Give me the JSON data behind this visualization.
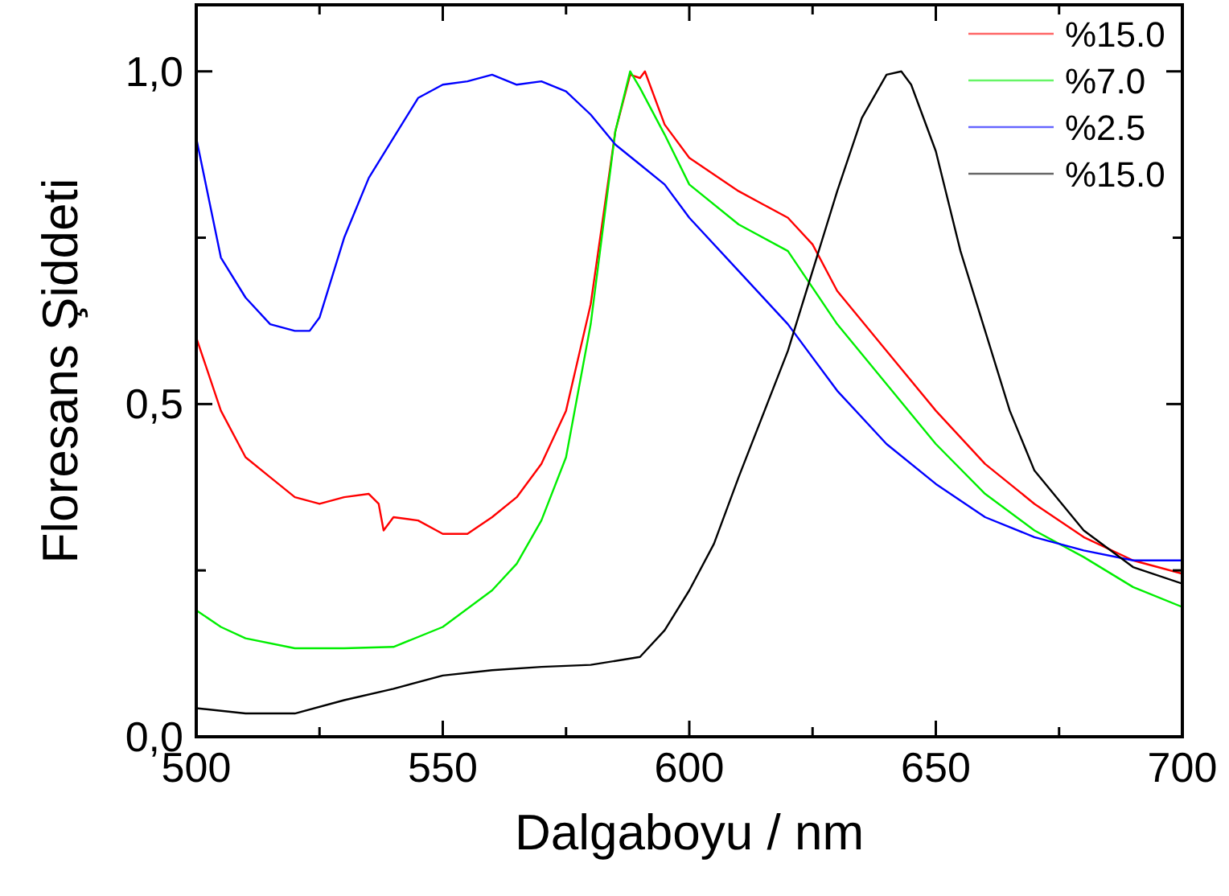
{
  "chart_data": {
    "type": "line",
    "xlabel": "Dalgaboyu / nm",
    "ylabel": "Floresans Şiddeti",
    "xlim": [
      500,
      700
    ],
    "ylim": [
      0,
      1.1
    ],
    "xticks": [
      500,
      {
        "value": 525,
        "label": null
      },
      550,
      {
        "value": 575,
        "label": null
      },
      600,
      {
        "value": 625,
        "label": null
      },
      650,
      {
        "value": 675,
        "label": null
      },
      700
    ],
    "yticks": [
      {
        "value": 0,
        "label": "0,0"
      },
      {
        "value": 0.25,
        "label": null
      },
      {
        "value": 0.5,
        "label": "0,5"
      },
      {
        "value": 0.75,
        "label": null
      },
      {
        "value": 1,
        "label": "1,0"
      }
    ],
    "grid": false,
    "legend": "top right",
    "line_style": "solid",
    "series": [
      {
        "name": "%15.0",
        "color": "#ff0000",
        "x": [
          500,
          505,
          510,
          515,
          520,
          525,
          530,
          535,
          537,
          538,
          540,
          545,
          550,
          555,
          560,
          565,
          570,
          575,
          580,
          585,
          588,
          590,
          591,
          595,
          600,
          610,
          615,
          620,
          625,
          630,
          640,
          650,
          660,
          670,
          680,
          690,
          700
        ],
        "values": [
          0.6,
          0.49,
          0.42,
          0.39,
          0.36,
          0.35,
          0.36,
          0.365,
          0.35,
          0.31,
          0.33,
          0.325,
          0.305,
          0.305,
          0.33,
          0.36,
          0.41,
          0.49,
          0.65,
          0.91,
          0.995,
          0.99,
          1.0,
          0.92,
          0.87,
          0.82,
          0.8,
          0.78,
          0.74,
          0.67,
          0.58,
          0.49,
          0.41,
          0.35,
          0.3,
          0.265,
          0.245
        ]
      },
      {
        "name": "%7.0",
        "color": "#00ee00",
        "x": [
          500,
          505,
          510,
          520,
          530,
          540,
          550,
          560,
          565,
          570,
          575,
          580,
          585,
          588,
          590,
          595,
          600,
          610,
          620,
          630,
          640,
          650,
          660,
          670,
          680,
          690,
          700
        ],
        "values": [
          0.19,
          0.165,
          0.148,
          0.133,
          0.133,
          0.135,
          0.165,
          0.22,
          0.26,
          0.325,
          0.42,
          0.62,
          0.91,
          1.0,
          0.975,
          0.905,
          0.83,
          0.77,
          0.73,
          0.62,
          0.53,
          0.44,
          0.365,
          0.31,
          0.27,
          0.225,
          0.195
        ]
      },
      {
        "name": "%2.5",
        "color": "#0000ff",
        "x": [
          500,
          505,
          510,
          515,
          520,
          523,
          525,
          530,
          535,
          540,
          545,
          550,
          555,
          560,
          565,
          570,
          575,
          580,
          585,
          590,
          595,
          600,
          610,
          620,
          630,
          640,
          650,
          660,
          670,
          680,
          690,
          700
        ],
        "values": [
          0.9,
          0.72,
          0.66,
          0.62,
          0.61,
          0.61,
          0.63,
          0.75,
          0.84,
          0.9,
          0.96,
          0.98,
          0.985,
          0.995,
          0.98,
          0.985,
          0.97,
          0.935,
          0.89,
          0.86,
          0.83,
          0.78,
          0.7,
          0.62,
          0.52,
          0.44,
          0.38,
          0.33,
          0.3,
          0.28,
          0.265,
          0.265
        ]
      },
      {
        "name": "%15.0",
        "color": "#000000",
        "x": [
          500,
          510,
          520,
          530,
          540,
          550,
          560,
          570,
          580,
          590,
          595,
          600,
          605,
          610,
          620,
          630,
          635,
          640,
          643,
          645,
          650,
          655,
          660,
          665,
          670,
          680,
          690,
          700
        ],
        "values": [
          0.043,
          0.035,
          0.035,
          0.055,
          0.072,
          0.092,
          0.1,
          0.105,
          0.108,
          0.12,
          0.16,
          0.22,
          0.29,
          0.39,
          0.58,
          0.82,
          0.93,
          0.995,
          1.0,
          0.98,
          0.88,
          0.73,
          0.61,
          0.49,
          0.4,
          0.31,
          0.255,
          0.23
        ]
      }
    ]
  }
}
